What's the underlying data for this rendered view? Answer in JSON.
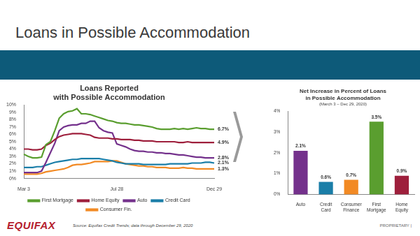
{
  "title": "Loans in Possible Accommodation",
  "logo": "EQUIFAX",
  "source": "Source: Equifax Credit Trends; data through December 29, 2020",
  "footer": "PROPRIETARY |",
  "chart_data": [
    {
      "type": "line",
      "title": [
        "Loans Reported",
        "with Possible Accommodation"
      ],
      "categories": [
        "Mar 3",
        null,
        null,
        null,
        null,
        null,
        null,
        null,
        null,
        null,
        null,
        null,
        null,
        null,
        null,
        null,
        null,
        null,
        null,
        null,
        null,
        "Jul 28",
        null,
        null,
        null,
        null,
        null,
        null,
        null,
        null,
        null,
        null,
        null,
        null,
        null,
        null,
        null,
        null,
        null,
        null,
        null,
        null,
        null,
        "Dec 29"
      ],
      "series": [
        {
          "name": "First Mortgage",
          "color": "#5a9e2f",
          "values": [
            3.3,
            3.0,
            2.8,
            2.8,
            2.9,
            4.6,
            5.0,
            6.5,
            8.2,
            8.8,
            9.1,
            9.2,
            9.5,
            8.8,
            8.8,
            8.7,
            8.5,
            8.3,
            8.1,
            7.9,
            7.8,
            7.6,
            7.5,
            7.5,
            7.4,
            7.3,
            7.3,
            7.2,
            7.1,
            7.0,
            6.8,
            6.7,
            6.7,
            6.7,
            6.8,
            6.7,
            6.8,
            6.7,
            6.8,
            6.9,
            6.8,
            6.8,
            6.7,
            6.7
          ]
        },
        {
          "name": "Home Equity",
          "color": "#9e1f3c",
          "values": [
            4.0,
            4.0,
            3.9,
            3.9,
            4.0,
            4.5,
            4.8,
            5.3,
            5.7,
            5.9,
            6.0,
            6.1,
            6.1,
            6.1,
            6.0,
            5.9,
            5.6,
            5.5,
            5.5,
            5.5,
            5.4,
            5.4,
            5.3,
            5.3,
            5.3,
            5.2,
            5.2,
            5.1,
            5.1,
            5.1,
            5.0,
            5.0,
            5.0,
            5.0,
            5.0,
            4.9,
            4.9,
            5.0,
            4.9,
            4.9,
            4.9,
            4.9,
            4.9,
            4.9
          ]
        },
        {
          "name": "Auto",
          "color": "#74318c",
          "values": [
            0.8,
            0.8,
            0.8,
            0.8,
            1.0,
            2.2,
            3.5,
            4.8,
            6.5,
            7.0,
            7.2,
            7.3,
            7.3,
            7.5,
            7.5,
            7.8,
            7.8,
            6.9,
            6.5,
            6.3,
            6.2,
            4.7,
            4.5,
            4.3,
            4.0,
            3.8,
            3.7,
            3.7,
            3.6,
            3.6,
            3.5,
            3.5,
            3.4,
            3.4,
            3.3,
            3.2,
            3.2,
            3.1,
            3.0,
            2.9,
            2.9,
            2.8,
            2.8,
            2.8
          ]
        },
        {
          "name": "Credit Card",
          "color": "#1a7ea8",
          "values": [
            1.5,
            1.5,
            1.5,
            1.6,
            1.6,
            1.8,
            2.0,
            2.2,
            2.3,
            2.4,
            2.5,
            2.6,
            2.6,
            2.7,
            2.7,
            2.7,
            2.7,
            2.7,
            2.6,
            2.5,
            2.4,
            2.2,
            2.1,
            2.0,
            2.0,
            2.0,
            2.0,
            1.9,
            1.9,
            1.9,
            1.9,
            1.9,
            1.9,
            2.0,
            2.0,
            2.0,
            2.0,
            2.0,
            2.1,
            2.1,
            2.1,
            2.2,
            2.2,
            2.1
          ]
        },
        {
          "name": "Consumer Fin.",
          "color": "#f28a24",
          "values": [
            0.6,
            0.6,
            0.6,
            0.6,
            0.7,
            0.9,
            1.0,
            1.1,
            1.2,
            1.3,
            1.5,
            1.8,
            1.9,
            1.9,
            2.0,
            2.1,
            2.3,
            2.3,
            2.3,
            2.3,
            2.4,
            2.4,
            2.2,
            2.0,
            1.9,
            1.8,
            1.7,
            1.7,
            1.6,
            1.6,
            1.5,
            1.5,
            1.5,
            1.4,
            1.4,
            1.4,
            1.5,
            1.4,
            1.4,
            1.3,
            1.3,
            1.3,
            1.3,
            1.3
          ]
        }
      ],
      "ylim": [
        0,
        10
      ],
      "yticks": [
        {
          "value": 0,
          "label": "0%"
        },
        {
          "value": 1,
          "label": "1%"
        },
        {
          "value": 2,
          "label": "2%"
        },
        {
          "value": 3,
          "label": "3%"
        },
        {
          "value": 4,
          "label": "4%"
        },
        {
          "value": 5,
          "label": "5%"
        },
        {
          "value": 6,
          "label": "6%"
        },
        {
          "value": 7,
          "label": "7%"
        },
        {
          "value": 8,
          "label": "8%"
        },
        {
          "value": 9,
          "label": "9%"
        },
        {
          "value": 10,
          "label": "10%"
        }
      ],
      "annotations": [
        {
          "text": "6.7%",
          "value": 6.7
        },
        {
          "text": "4.9%",
          "value": 4.9
        },
        {
          "text": "2.8%",
          "value": 2.8
        },
        {
          "text": "2.1%",
          "value": 2.1
        },
        {
          "text": "1.3%",
          "value": 1.3
        }
      ],
      "grid": false,
      "legend": "bottom"
    },
    {
      "type": "bar",
      "title": [
        "Net Increase in Percent of Loans",
        "in Possible Accommodation"
      ],
      "subtitle": "(March 3 – Dec 29, 2020)",
      "categories": [
        "Auto",
        "Credit Card",
        "Consumer Finance",
        "First Mortgage",
        "Home Equity"
      ],
      "values": [
        2.1,
        0.6,
        0.7,
        3.5,
        0.9
      ],
      "value_labels": [
        "2.1%",
        "0.6%",
        "0.7%",
        "3.5%",
        "0.9%"
      ],
      "colors": [
        "#74318c",
        "#1a7ea8",
        "#f28a24",
        "#5a9e2f",
        "#9e1f3c"
      ],
      "ylim": [
        0,
        4
      ],
      "yticks": [
        {
          "value": 0,
          "label": "0%"
        },
        {
          "value": 1,
          "label": "1%"
        },
        {
          "value": 2,
          "label": "2%"
        },
        {
          "value": 3,
          "label": "3%"
        },
        {
          "value": 4,
          "label": "4%"
        }
      ],
      "data_labels": true,
      "grid": false
    }
  ]
}
